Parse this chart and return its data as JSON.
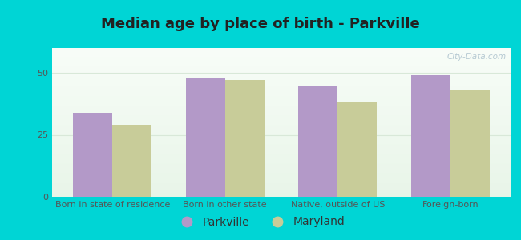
{
  "title": "Median age by place of birth - Parkville",
  "categories": [
    "Born in state of residence",
    "Born in other state",
    "Native, outside of US",
    "Foreign-born"
  ],
  "parkville_values": [
    34,
    48,
    45,
    49
  ],
  "maryland_values": [
    29,
    47,
    38,
    43
  ],
  "parkville_color": "#b399c8",
  "maryland_color": "#c8cc99",
  "bar_width": 0.35,
  "ylim": [
    0,
    60
  ],
  "yticks": [
    0,
    25,
    50
  ],
  "bg_outer": "#00d5d5",
  "grid_color": "#d8e8d8",
  "legend_parkville": "Parkville",
  "legend_maryland": "Maryland",
  "title_fontsize": 13,
  "tick_fontsize": 8,
  "legend_fontsize": 10,
  "watermark": "City-Data.com"
}
